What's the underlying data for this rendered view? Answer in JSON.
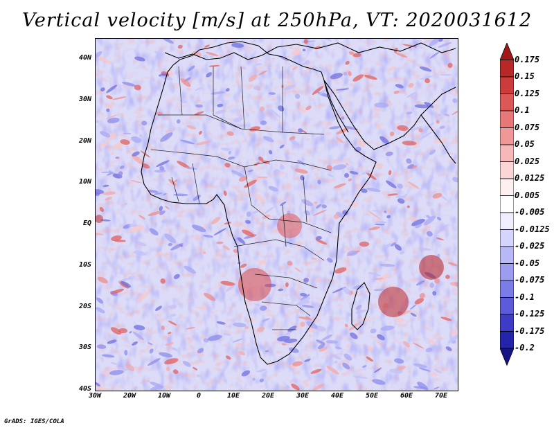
{
  "title": "Vertical velocity [m/s] at 250hPa, VT: 2020031612",
  "credit": "GrADS: IGES/COLA",
  "lat_labels": [
    "40N",
    "30N",
    "20N",
    "10N",
    "EQ",
    "10S",
    "20S",
    "30S",
    "40S"
  ],
  "lon_labels": [
    "30W",
    "20W",
    "10W",
    "0",
    "10E",
    "20E",
    "30E",
    "40E",
    "50E",
    "60E",
    "70E"
  ],
  "colorbar": {
    "levels": [
      "0.175",
      "0.15",
      "0.125",
      "0.1",
      "0.075",
      "0.05",
      "0.025",
      "0.0125",
      "0.005",
      "-0.005",
      "-0.0125",
      "-0.025",
      "-0.05",
      "-0.075",
      "-0.1",
      "-0.125",
      "-0.175",
      "-0.2"
    ],
    "colors": [
      "#a01818",
      "#b82828",
      "#cc3c3c",
      "#dc5858",
      "#e87878",
      "#f09898",
      "#f6b8b8",
      "#fad6d6",
      "#fdf0f0",
      "#ffffff",
      "#eeeeff",
      "#d4d4fc",
      "#b8b8f6",
      "#9c9cf0",
      "#7c7ce6",
      "#5c5cda",
      "#3c3cc6",
      "#2424aa",
      "#141486"
    ]
  },
  "map_region": {
    "lon_min": -30,
    "lon_max": 75,
    "lat_min": -40,
    "lat_max": 45
  }
}
